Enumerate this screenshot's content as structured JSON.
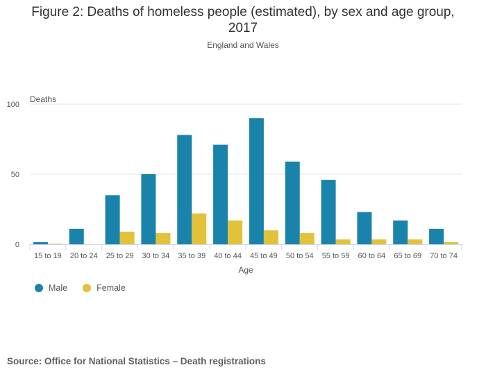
{
  "chart_data": {
    "type": "bar",
    "title": "Figure 2: Deaths of homeless people (estimated), by sex and age group, 2017",
    "subtitle": "England and Wales",
    "xlabel": "Age",
    "ylabel": "Deaths",
    "ylim": [
      0,
      100
    ],
    "yticks": [
      0,
      50,
      100
    ],
    "grid": true,
    "legend_position": "bottom-left",
    "categories": [
      "15 to 19",
      "20 to 24",
      "25 to 29",
      "30 to 34",
      "35 to 39",
      "40 to 44",
      "45 to 49",
      "50 to 54",
      "55 to 59",
      "60 to 64",
      "65 to 69",
      "70 to 74"
    ],
    "series": [
      {
        "name": "Male",
        "color": "#1a83ab",
        "values": [
          1.5,
          11,
          35,
          50,
          78,
          71,
          90,
          59,
          46,
          23,
          17,
          11
        ]
      },
      {
        "name": "Female",
        "color": "#e2c23a",
        "values": [
          0.5,
          0,
          9,
          8,
          22,
          17,
          10,
          8,
          3.5,
          3.5,
          3.5,
          1.5
        ]
      }
    ]
  },
  "title_line1": "Figure 2: Deaths of homeless people (estimated), by sex and age group,",
  "title_line2": "2017",
  "source": "Source: Office for National Statistics – Death registrations"
}
